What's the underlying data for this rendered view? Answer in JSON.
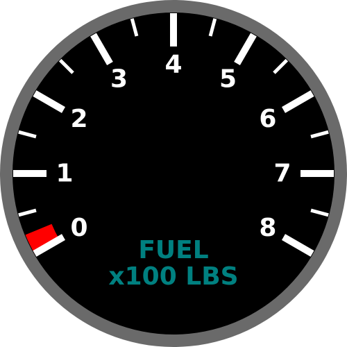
{
  "gauge": {
    "label_line1": "FUEL",
    "label_line2": "x100 LBS",
    "label_color": "#008080",
    "bezel_color": "#6a6a6a",
    "face_color": "#000000",
    "tick_color": "#ffffff",
    "warning_color": "#ff0000",
    "scale_min": 0,
    "scale_max": 8,
    "warning_zone": [
      0,
      0.25
    ],
    "numbers": [
      "0",
      "1",
      "2",
      "3",
      "4",
      "5",
      "6",
      "7",
      "8"
    ]
  }
}
